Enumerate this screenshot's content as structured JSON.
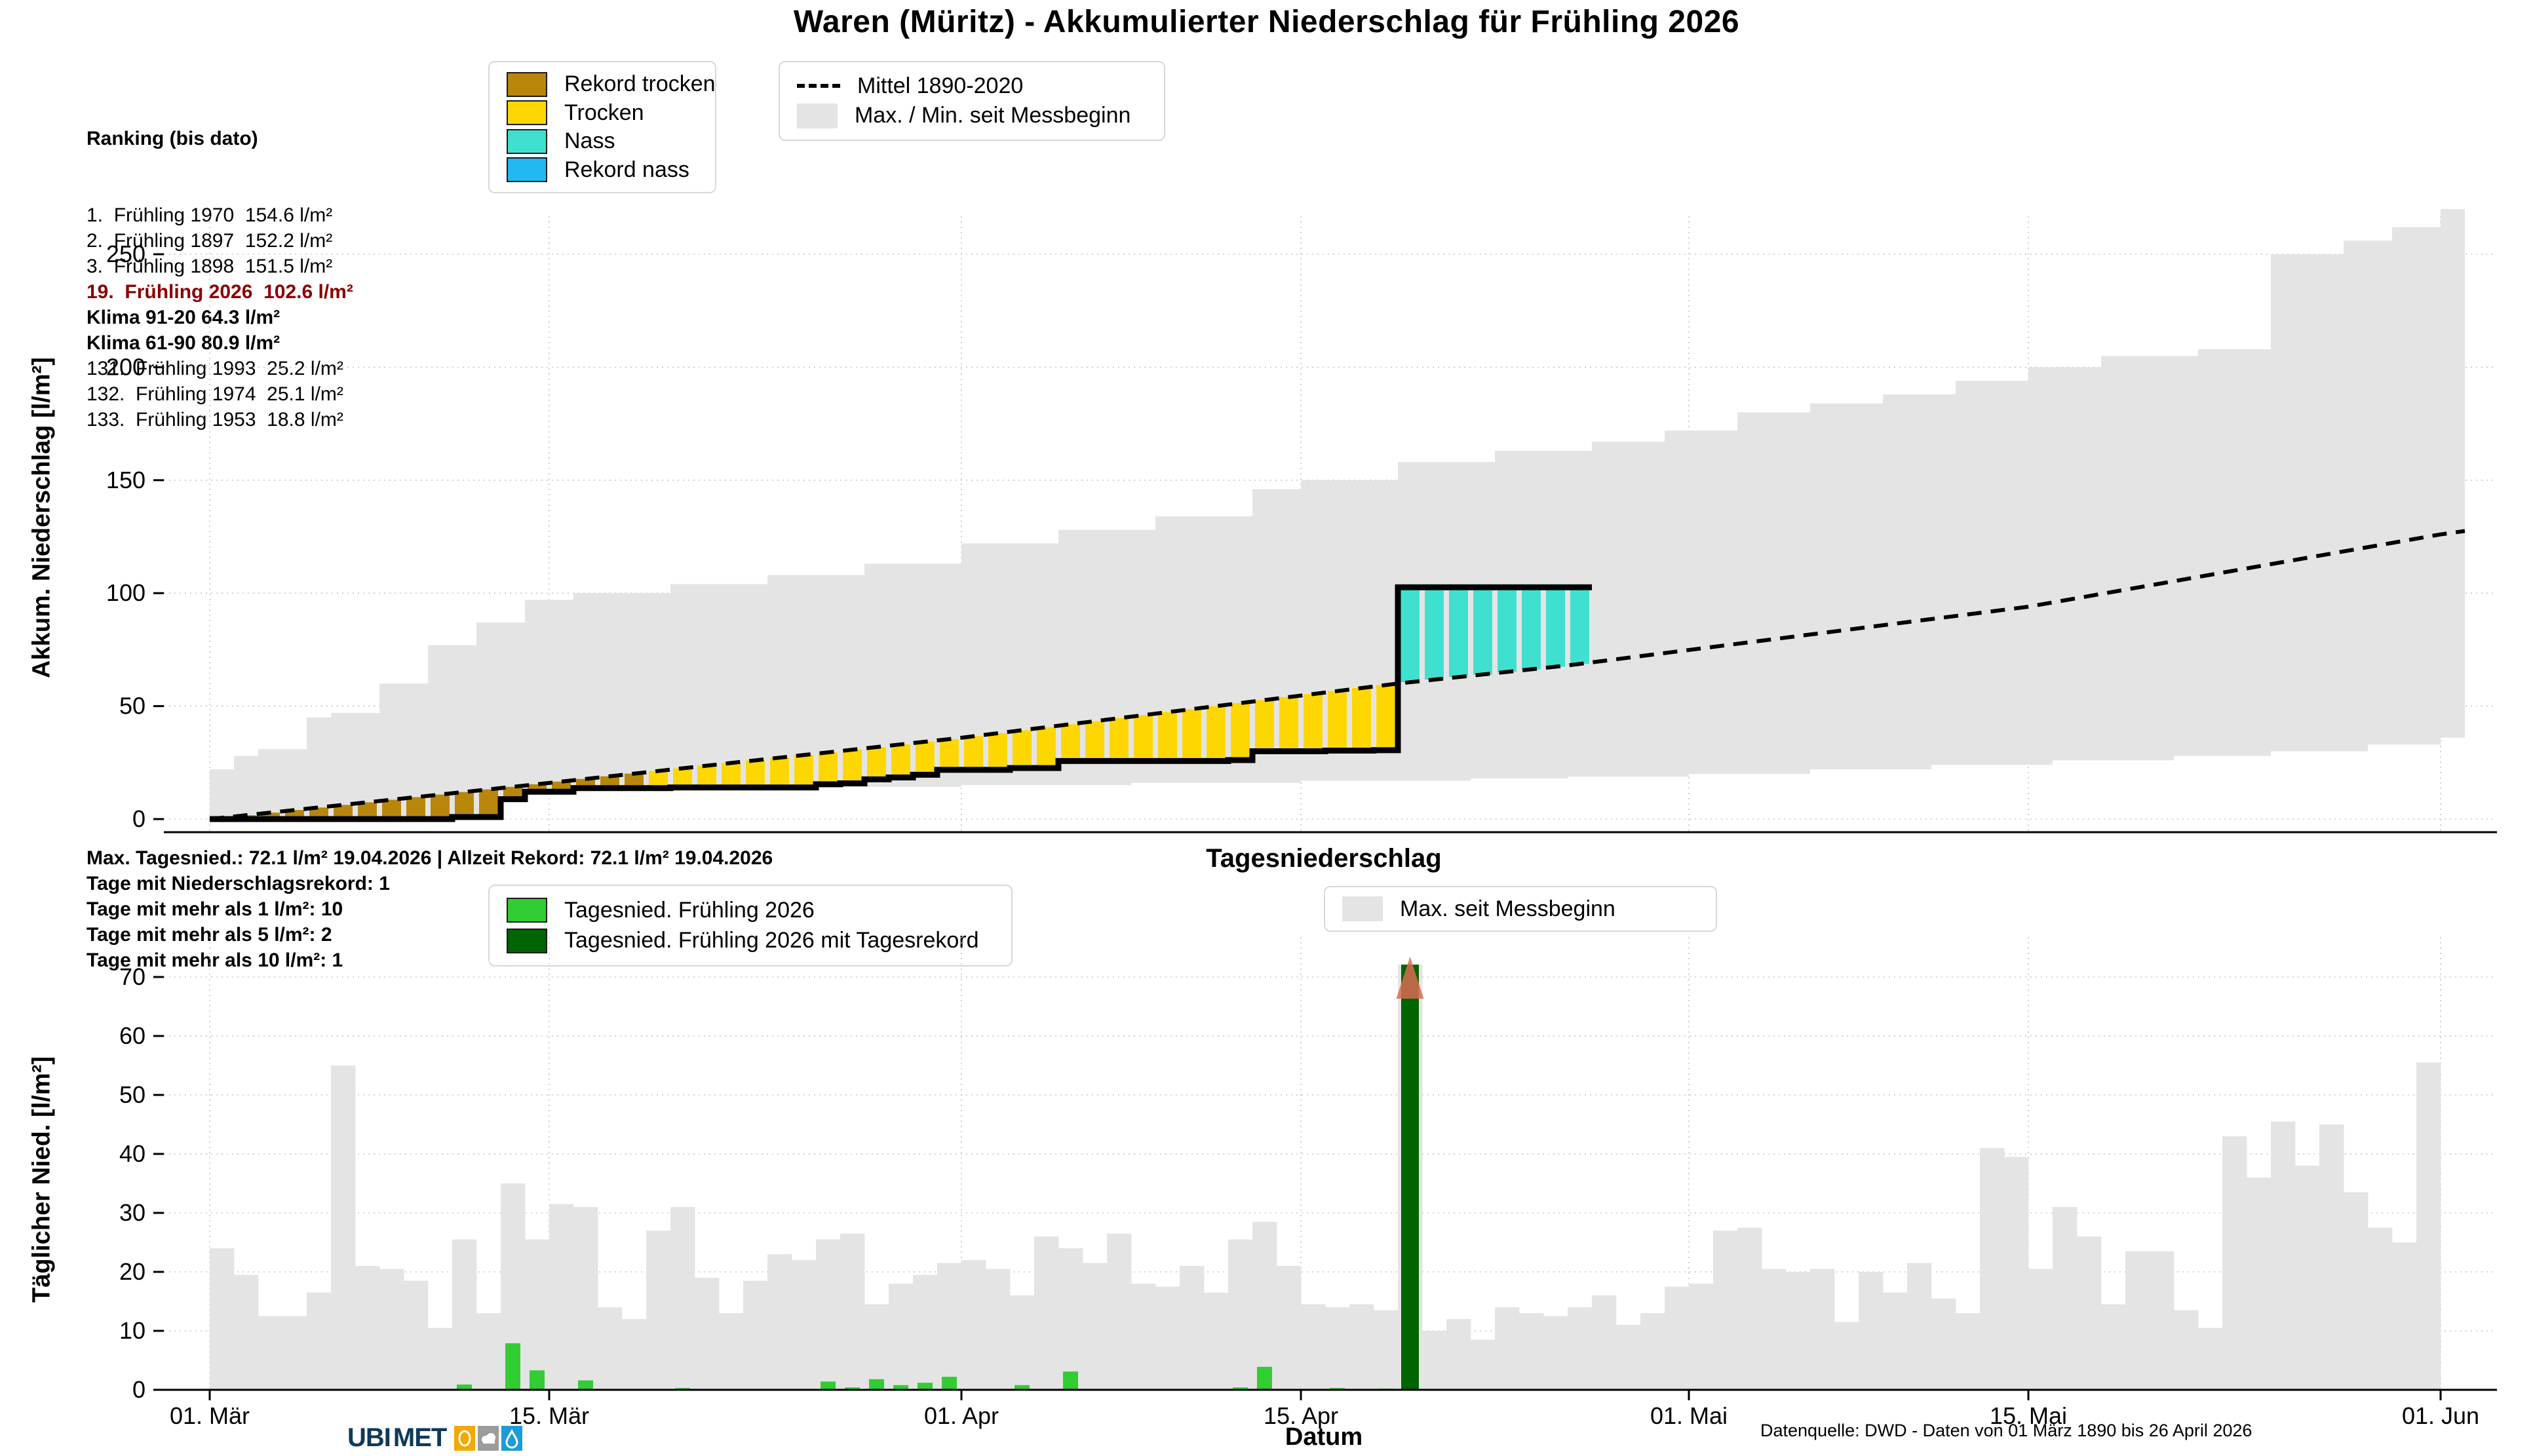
{
  "title": "Waren (Müritz) - Akkumulierter Niederschlag für Frühling 2026",
  "footer": {
    "text": "Datenquelle: DWD - Daten von 01 März 1890 bis 26 April 2026"
  },
  "logo": {
    "ubi": "UBI",
    "met": "MET",
    "tiles": [
      "sun-icon",
      "cloud-icon",
      "drop-icon"
    ],
    "tile_colors": {
      "sun": "#F5A800",
      "cloud": "#9c9c9c",
      "drop": "#1b9cd8"
    },
    "text_color": "#0e3a5a"
  },
  "colors": {
    "rekord_trocken": "#B8860B",
    "trocken": "#FFD700",
    "nass": "#40E0D0",
    "rekord_nass": "#22B8F0",
    "envelope_gray": "#E4E4E4",
    "daily_2026_green": "#32CD32",
    "daily_record_green": "#006400",
    "record_marker_salmon": "#D96A55",
    "ranking_highlight_red": "#8B0000",
    "mean_line": "#000000",
    "accum_line": "#000000"
  },
  "ranking": {
    "header": "Ranking (bis dato)",
    "lines": [
      {
        "text": "1.  Frühling 1970  154.6 l/m²",
        "style": "normal"
      },
      {
        "text": "2.  Frühling 1897  152.2 l/m²",
        "style": "normal"
      },
      {
        "text": "3.  Frühling 1898  151.5 l/m²",
        "style": "normal"
      },
      {
        "text": "19.  Frühling 2026  102.6 l/m²",
        "style": "red-bold"
      },
      {
        "text": "Klima 91-20 64.3 l/m²",
        "style": "bold"
      },
      {
        "text": "Klima 61-90 80.9 l/m²",
        "style": "bold"
      },
      {
        "text": "131.  Frühling 1993  25.2 l/m²",
        "style": "normal"
      },
      {
        "text": "132.  Frühling 1974  25.1 l/m²",
        "style": "normal"
      },
      {
        "text": "133.  Frühling 1953  18.8 l/m²",
        "style": "normal"
      }
    ]
  },
  "stats": {
    "lines": [
      "Max. Tagesnied.: 72.1 l/m² 19.04.2026 | Allzeit Rekord: 72.1 l/m² 19.04.2026",
      "Tage mit Niederschlagsrekord: 1",
      "Tage mit mehr als 1 l/m²: 10",
      "Tage mit mehr als 5 l/m²: 2",
      "Tage mit mehr als 10 l/m²: 1"
    ]
  },
  "legends": {
    "top_categories": [
      {
        "label": "Rekord trocken",
        "color": "#B8860B"
      },
      {
        "label": "Trocken",
        "color": "#FFD700"
      },
      {
        "label": "Nass",
        "color": "#40E0D0"
      },
      {
        "label": "Rekord nass",
        "color": "#22B8F0"
      }
    ],
    "top_lines": [
      {
        "label": "Mittel 1890-2020",
        "type": "dashed-line"
      },
      {
        "label": "Max. / Min. seit Messbeginn",
        "type": "patch",
        "color": "#E4E4E4"
      }
    ],
    "bottom_categories": [
      {
        "label": "Tagesnied. Frühling 2026",
        "color": "#32CD32"
      },
      {
        "label": "Tagesnied. Frühling 2026 mit Tagesrekord",
        "color": "#006400"
      }
    ],
    "bottom_max": [
      {
        "label": "Max. seit Messbeginn",
        "color": "#E4E4E4"
      }
    ]
  },
  "chart_data": [
    {
      "type": "area",
      "name": "akkumulierter-niederschlag",
      "title": "Waren (Müritz) - Akkumulierter Niederschlag für Frühling 2026",
      "ylabel": "Akkum. Niederschlag [l/m²]",
      "xlabel": "Datum",
      "ylim": [
        0,
        265
      ],
      "yticks": [
        0,
        50,
        100,
        150,
        200,
        250
      ],
      "xticks": [
        {
          "day": 0,
          "label": "01. Mär"
        },
        {
          "day": 14,
          "label": "15. Mär"
        },
        {
          "day": 31,
          "label": "01. Apr"
        },
        {
          "day": 45,
          "label": "15. Apr"
        },
        {
          "day": 61,
          "label": "01. Mai"
        },
        {
          "day": 75,
          "label": "15. Mai"
        },
        {
          "day": 92,
          "label": "01. Jun"
        }
      ],
      "days_with_data": 57,
      "season_total_2026": 102.6,
      "daily_precip_2026": [
        0,
        0,
        0,
        0,
        0,
        0,
        0,
        0,
        0,
        0,
        0.9,
        0,
        7.9,
        3.3,
        0,
        1.6,
        0,
        0,
        0,
        0.3,
        0,
        0,
        0,
        0,
        0,
        1.4,
        0.4,
        1.8,
        0.8,
        1.2,
        2.2,
        0,
        0,
        0.8,
        0,
        3.1,
        0,
        0,
        0,
        0,
        0,
        0,
        0.4,
        3.9,
        0,
        0,
        0.3,
        0,
        0.2,
        72.1,
        0,
        0,
        0,
        0,
        0,
        0,
        0
      ],
      "segments": {
        "rekord_trocken_days": [
          0,
          17
        ],
        "trocken_days": [
          18,
          48
        ],
        "nass_days": [
          49,
          56
        ]
      },
      "mean_1890_2020_anchors": [
        [
          0,
          0
        ],
        [
          14,
          16
        ],
        [
          31,
          36
        ],
        [
          49,
          60
        ],
        [
          56,
          68
        ],
        [
          75,
          94
        ],
        [
          92,
          126
        ],
        [
          93,
          127.5
        ]
      ],
      "envelope_max_steps": [
        [
          0,
          22
        ],
        [
          1,
          28
        ],
        [
          2,
          31
        ],
        [
          4,
          45
        ],
        [
          5,
          47
        ],
        [
          7,
          60
        ],
        [
          9,
          77
        ],
        [
          11,
          87
        ],
        [
          13,
          97
        ],
        [
          15,
          100
        ],
        [
          19,
          104
        ],
        [
          23,
          108
        ],
        [
          27,
          113
        ],
        [
          31,
          122
        ],
        [
          35,
          128
        ],
        [
          39,
          134
        ],
        [
          43,
          146
        ],
        [
          45,
          150
        ],
        [
          49,
          158
        ],
        [
          53,
          163
        ],
        [
          57,
          167
        ],
        [
          60,
          172
        ],
        [
          63,
          180
        ],
        [
          66,
          184
        ],
        [
          69,
          188
        ],
        [
          72,
          194
        ],
        [
          75,
          200
        ],
        [
          78,
          205
        ],
        [
          82,
          208
        ],
        [
          85,
          250
        ],
        [
          88,
          256
        ],
        [
          90,
          262
        ],
        [
          92,
          270
        ],
        [
          93,
          272
        ]
      ],
      "envelope_min_steps": [
        [
          0,
          0
        ],
        [
          10,
          0.9
        ],
        [
          12,
          8.8
        ],
        [
          13,
          12.1
        ],
        [
          15,
          13.7
        ],
        [
          18,
          13.9
        ],
        [
          25,
          14.2
        ],
        [
          31,
          15
        ],
        [
          38,
          16
        ],
        [
          45,
          17
        ],
        [
          52,
          18
        ],
        [
          56,
          18.8
        ],
        [
          61,
          20
        ],
        [
          66,
          22
        ],
        [
          71,
          24
        ],
        [
          76,
          26
        ],
        [
          81,
          28
        ],
        [
          85,
          30
        ],
        [
          89,
          33
        ],
        [
          92,
          36
        ],
        [
          93,
          38
        ]
      ],
      "legend": [
        "Rekord trocken",
        "Trocken",
        "Nass",
        "Rekord nass",
        "Mittel 1890-2020",
        "Max. / Min. seit Messbeginn"
      ]
    },
    {
      "type": "bar",
      "name": "tagesniederschlag",
      "title": "Tagesniederschlag",
      "ylabel": "Täglicher Nied. [l/m²]",
      "ylim": [
        0,
        75
      ],
      "yticks": [
        0,
        10,
        20,
        30,
        40,
        50,
        60,
        70
      ],
      "daily_max_since_1890": [
        24,
        19.5,
        12.5,
        12.5,
        16.5,
        55,
        21,
        20.5,
        18.5,
        10.5,
        25.5,
        13,
        35,
        25.5,
        31.5,
        31,
        14,
        12,
        27,
        31,
        19,
        13,
        18.5,
        23,
        22,
        25.5,
        26.5,
        14.5,
        18,
        19.5,
        21.5,
        22,
        20.5,
        16,
        26,
        24,
        21.5,
        26.5,
        18,
        17.5,
        21,
        16.5,
        25.5,
        28.5,
        21,
        14.5,
        14,
        14.5,
        13.5,
        72.1,
        10,
        12,
        8.5,
        14,
        13,
        12.5,
        14,
        16,
        11,
        13,
        17.5,
        18,
        27,
        27.5,
        20.5,
        20,
        20.5,
        11.5,
        20,
        16.5,
        21.5,
        15.5,
        13,
        41,
        39.5,
        20.5,
        31,
        26,
        14.5,
        23.5,
        23.5,
        13.5,
        10.5,
        43,
        36,
        45.5,
        38,
        45,
        33.5,
        27.5,
        25,
        55.5
      ],
      "record": {
        "day_index": 49,
        "value": 72.1,
        "date": "19.04.2026"
      },
      "legend": [
        "Tagesnied. Frühling 2026",
        "Tagesnied. Frühling 2026 mit Tagesrekord",
        "Max. seit Messbeginn"
      ]
    }
  ]
}
